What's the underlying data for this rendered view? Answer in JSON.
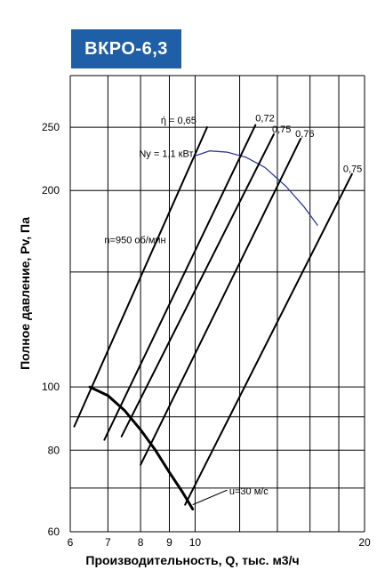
{
  "chart_data": {
    "type": "line",
    "title": "ВКРО-6,3",
    "xlabel": "Производительность, Q, тыс. м3/ч",
    "ylabel": "Полное давление, Pv, Па",
    "x_scale": "log",
    "y_scale": "log",
    "xlim": [
      6,
      20
    ],
    "ylim": [
      60,
      300
    ],
    "x_ticks": [
      6,
      7,
      8,
      9,
      10,
      20
    ],
    "y_ticks": [
      60,
      80,
      100,
      200,
      250
    ],
    "grid": true,
    "annotations": {
      "speed": "n=950 об/мин",
      "power": "Ny = 1,1 кВт",
      "velocity": "u=30 м/с",
      "eta_labels": [
        "ή = 0,65",
        "0,72",
        "0,75",
        "0,76",
        "0,75"
      ]
    },
    "series": [
      {
        "name": "n=950 об/мин",
        "color": "#000000",
        "points": [
          [
            6.5,
            100
          ],
          [
            7.0,
            97
          ],
          [
            7.5,
            92
          ],
          [
            8.0,
            86
          ],
          [
            8.5,
            80
          ],
          [
            9.0,
            74
          ],
          [
            9.5,
            69
          ],
          [
            9.9,
            65
          ]
        ]
      },
      {
        "name": "Ny = 1,1 кВт",
        "color": "#2b3a9a",
        "points": [
          [
            10.0,
            226
          ],
          [
            10.6,
            230
          ],
          [
            11.4,
            229
          ],
          [
            12.3,
            225
          ],
          [
            13.3,
            217
          ],
          [
            14.5,
            203
          ],
          [
            15.6,
            189
          ],
          [
            16.5,
            177
          ]
        ]
      },
      {
        "name": "ή = 0,65",
        "color": "#000000",
        "points": [
          [
            6.1,
            87
          ],
          [
            10.5,
            250
          ]
        ]
      },
      {
        "name": "0,72",
        "color": "#000000",
        "points": [
          [
            6.9,
            83
          ],
          [
            12.8,
            252
          ]
        ]
      },
      {
        "name": "0,75",
        "color": "#000000",
        "points": [
          [
            7.4,
            84
          ],
          [
            13.8,
            244
          ]
        ]
      },
      {
        "name": "0,76",
        "color": "#000000",
        "points": [
          [
            8.0,
            76
          ],
          [
            15.4,
            240
          ]
        ]
      },
      {
        "name": "0,75",
        "color": "#000000",
        "points": [
          [
            9.6,
            66
          ],
          [
            19.0,
            212
          ]
        ]
      }
    ]
  }
}
